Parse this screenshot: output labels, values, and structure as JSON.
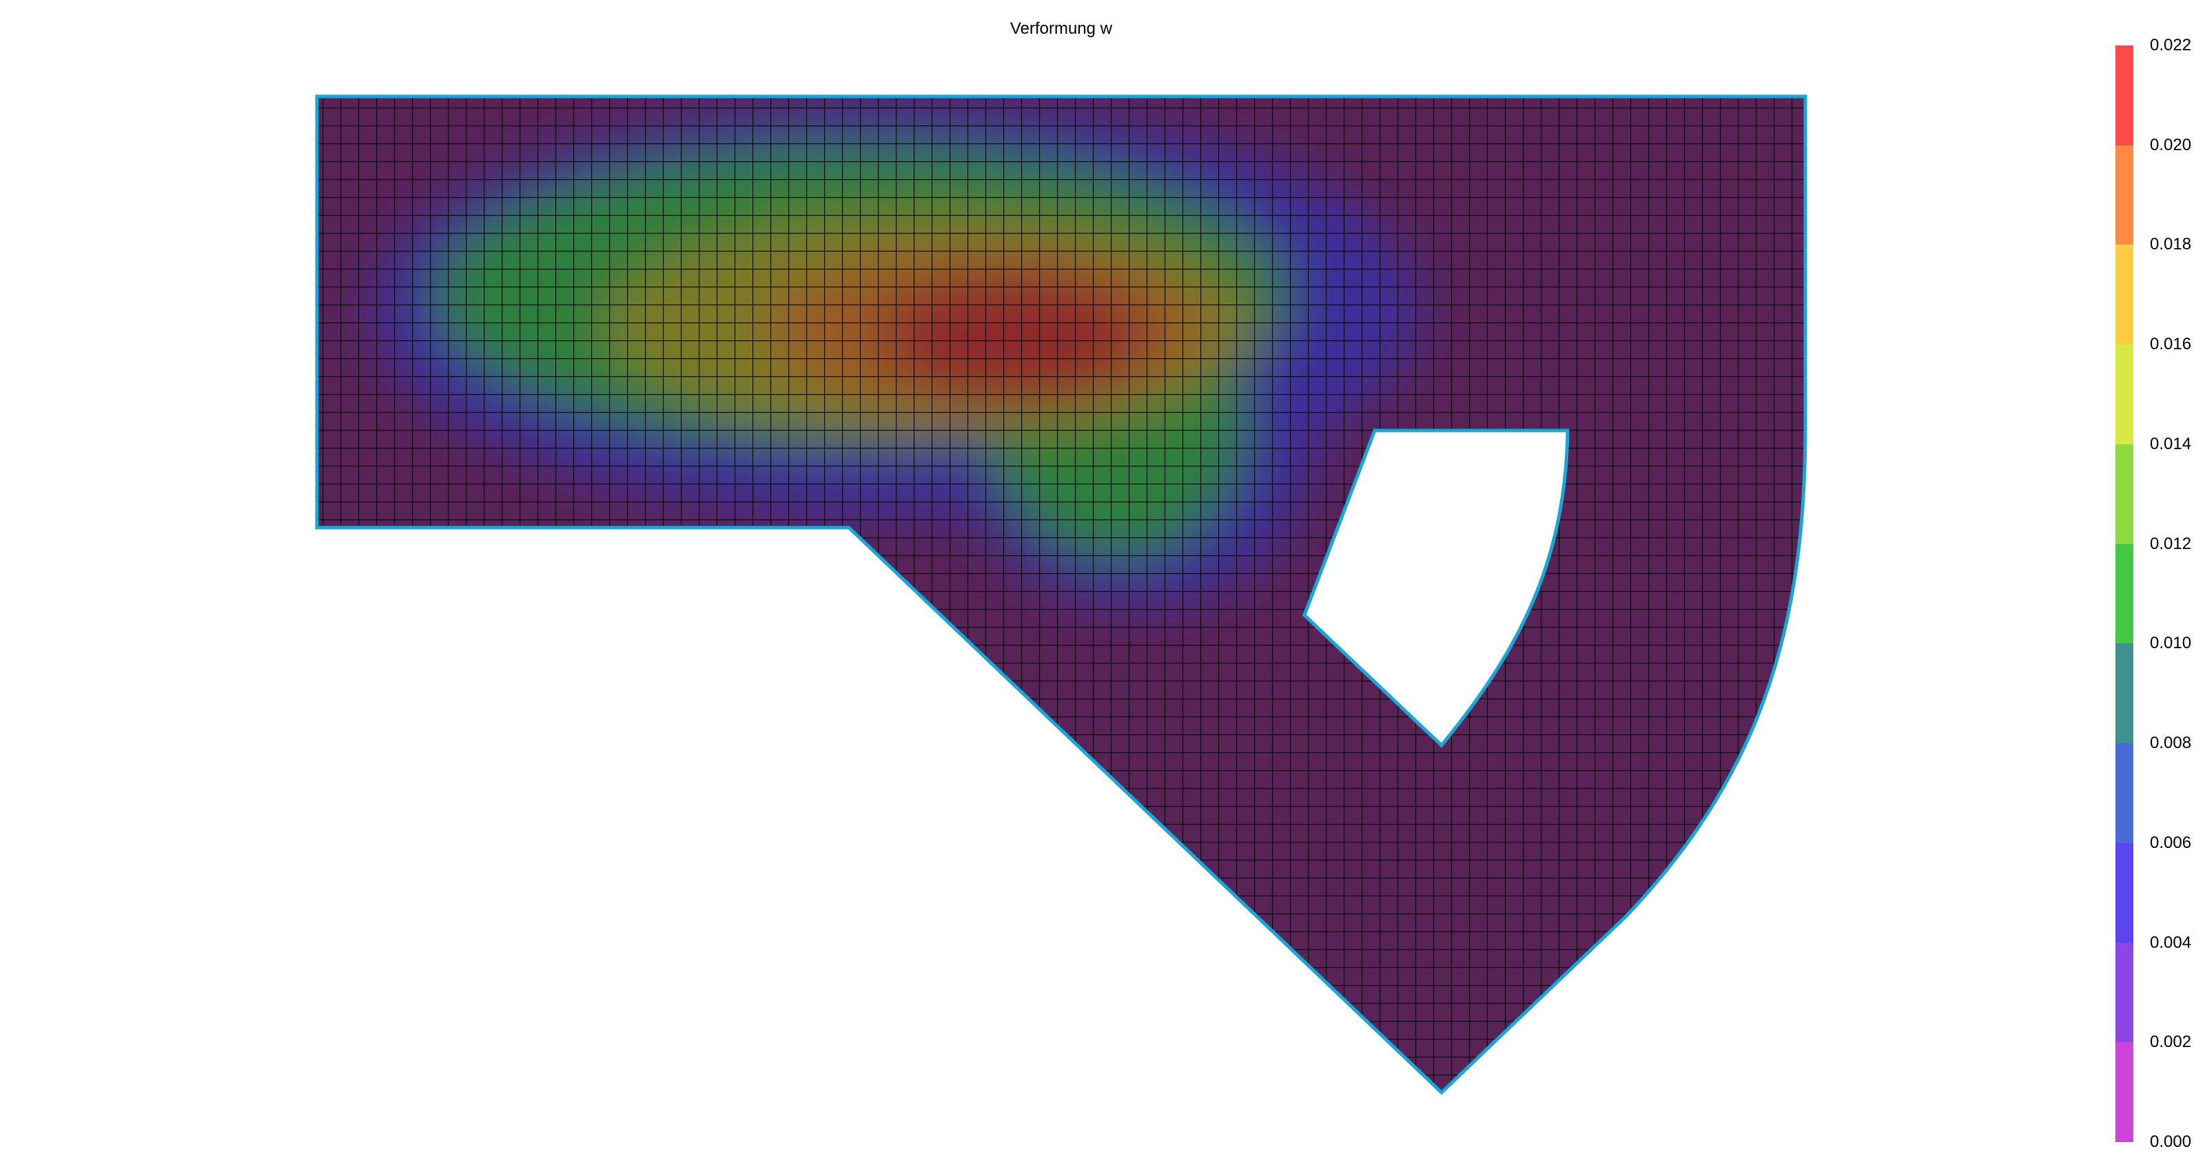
{
  "title": "Verformung w",
  "colorbar": {
    "ticks": [
      "0.022",
      "0.020",
      "0.018",
      "0.016",
      "0.014",
      "0.012",
      "0.010",
      "0.008",
      "0.006",
      "0.004",
      "0.002",
      "0.000"
    ],
    "colors": [
      "#ff4a4a",
      "#ff8a45",
      "#ffcc44",
      "#d8e844",
      "#8ed840",
      "#44c844",
      "#3f9090",
      "#4a6ad8",
      "#5a45f0",
      "#8e45e6",
      "#cc45d8"
    ]
  },
  "field": {
    "boundary_color": "#1aa6d6",
    "mesh_color": "#000000",
    "base_color": "#5a2358"
  }
}
